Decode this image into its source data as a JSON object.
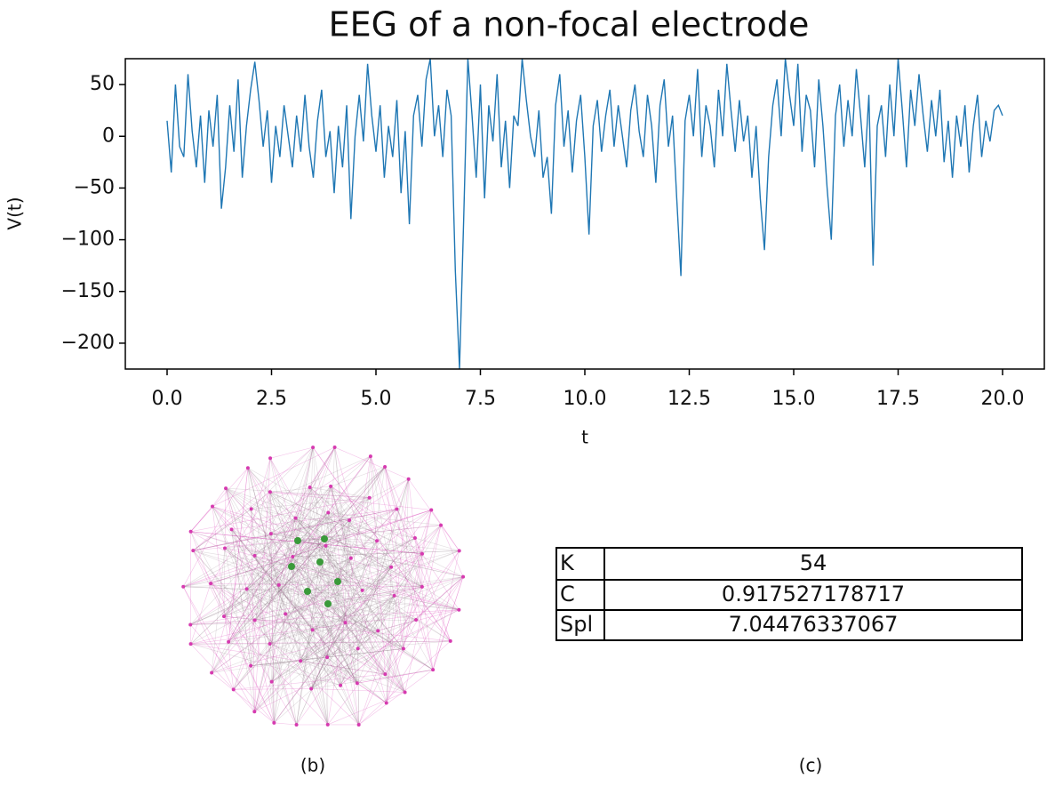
{
  "chart_data": {
    "type": "line",
    "title": "EEG of a non-focal electrode",
    "xlabel": "t",
    "ylabel": "V(t)",
    "color": "#1f77b4",
    "x": [
      0.0,
      0.1,
      0.2,
      0.3,
      0.4,
      0.5,
      0.6,
      0.7,
      0.8,
      0.9,
      1.0,
      1.1,
      1.2,
      1.3,
      1.4,
      1.5,
      1.6,
      1.7,
      1.8,
      1.9,
      2.0,
      2.1,
      2.2,
      2.3,
      2.4,
      2.5,
      2.6,
      2.7,
      2.8,
      2.9,
      3.0,
      3.1,
      3.2,
      3.3,
      3.4,
      3.5,
      3.6,
      3.7,
      3.8,
      3.9,
      4.0,
      4.1,
      4.2,
      4.3,
      4.4,
      4.5,
      4.6,
      4.7,
      4.8,
      4.9,
      5.0,
      5.1,
      5.2,
      5.3,
      5.4,
      5.5,
      5.6,
      5.7,
      5.8,
      5.9,
      6.0,
      6.1,
      6.2,
      6.3,
      6.4,
      6.5,
      6.6,
      6.7,
      6.8,
      6.9,
      7.0,
      7.1,
      7.2,
      7.3,
      7.4,
      7.5,
      7.6,
      7.7,
      7.8,
      7.9,
      8.0,
      8.1,
      8.2,
      8.3,
      8.4,
      8.5,
      8.6,
      8.7,
      8.8,
      8.9,
      9.0,
      9.1,
      9.2,
      9.3,
      9.4,
      9.5,
      9.6,
      9.7,
      9.8,
      9.9,
      10.0,
      10.1,
      10.2,
      10.3,
      10.4,
      10.5,
      10.6,
      10.7,
      10.8,
      10.9,
      11.0,
      11.1,
      11.2,
      11.3,
      11.4,
      11.5,
      11.6,
      11.7,
      11.8,
      11.9,
      12.0,
      12.1,
      12.2,
      12.3,
      12.4,
      12.5,
      12.6,
      12.7,
      12.8,
      12.9,
      13.0,
      13.1,
      13.2,
      13.3,
      13.4,
      13.5,
      13.6,
      13.7,
      13.8,
      13.9,
      14.0,
      14.1,
      14.2,
      14.3,
      14.4,
      14.5,
      14.6,
      14.7,
      14.8,
      14.9,
      15.0,
      15.1,
      15.2,
      15.3,
      15.4,
      15.5,
      15.6,
      15.7,
      15.8,
      15.9,
      16.0,
      16.1,
      16.2,
      16.3,
      16.4,
      16.5,
      16.6,
      16.7,
      16.8,
      16.9,
      17.0,
      17.1,
      17.2,
      17.3,
      17.4,
      17.5,
      17.6,
      17.7,
      17.8,
      17.9,
      18.0,
      18.1,
      18.2,
      18.3,
      18.4,
      18.5,
      18.6,
      18.7,
      18.8,
      18.9,
      19.0,
      19.1,
      19.2,
      19.3,
      19.4,
      19.5,
      19.6,
      19.7,
      19.8,
      19.9,
      20.0
    ],
    "values": [
      15,
      -35,
      50,
      -10,
      -20,
      60,
      5,
      -30,
      20,
      -45,
      25,
      -10,
      40,
      -70,
      -30,
      30,
      -15,
      55,
      -40,
      10,
      45,
      72,
      35,
      -10,
      25,
      -45,
      10,
      -20,
      30,
      0,
      -30,
      20,
      -15,
      40,
      -10,
      -40,
      15,
      45,
      -20,
      5,
      -55,
      10,
      -30,
      30,
      -80,
      0,
      40,
      -5,
      70,
      20,
      -15,
      30,
      -40,
      10,
      -20,
      35,
      -55,
      5,
      -85,
      20,
      40,
      -10,
      55,
      75,
      0,
      30,
      -20,
      45,
      20,
      -130,
      -225,
      -80,
      75,
      20,
      -40,
      50,
      -60,
      30,
      -5,
      60,
      -30,
      15,
      -50,
      20,
      10,
      75,
      35,
      0,
      -20,
      25,
      -40,
      -20,
      -75,
      30,
      60,
      -10,
      25,
      -35,
      15,
      40,
      -20,
      -95,
      10,
      35,
      -15,
      20,
      45,
      -10,
      30,
      0,
      -30,
      25,
      50,
      5,
      -20,
      40,
      10,
      -45,
      30,
      55,
      -10,
      20,
      -60,
      -135,
      15,
      40,
      0,
      65,
      -20,
      30,
      10,
      -30,
      45,
      0,
      70,
      25,
      -15,
      35,
      -5,
      20,
      -40,
      10,
      -60,
      -110,
      -20,
      30,
      55,
      0,
      75,
      40,
      10,
      70,
      -15,
      40,
      25,
      -30,
      55,
      10,
      -50,
      -100,
      20,
      50,
      -10,
      35,
      0,
      65,
      20,
      -30,
      40,
      -125,
      10,
      30,
      -20,
      50,
      0,
      75,
      25,
      -30,
      45,
      10,
      60,
      20,
      -15,
      35,
      0,
      45,
      -25,
      15,
      -40,
      20,
      -10,
      30,
      -35,
      10,
      40,
      -20,
      15,
      -5,
      25,
      30,
      20
    ],
    "xlim": [
      -1,
      21
    ],
    "ylim": [
      -225,
      75
    ],
    "xticks": [
      {
        "value": 0,
        "label": "0.0"
      },
      2.5,
      {
        "value": 5,
        "label": "5.0"
      },
      7.5,
      {
        "value": 10,
        "label": "10.0"
      },
      12.5,
      {
        "value": 15,
        "label": "15.0"
      },
      17.5,
      {
        "value": 20,
        "label": "20.0"
      }
    ],
    "yticks": [
      {
        "value": -200,
        "label": "−200"
      },
      {
        "value": -150,
        "label": "−150"
      },
      {
        "value": -100,
        "label": "−100"
      },
      {
        "value": -50,
        "label": "−50"
      },
      0,
      50
    ]
  },
  "table": {
    "rows": [
      [
        "K",
        "54"
      ],
      [
        "C",
        "0.917527178717"
      ],
      [
        "Spl",
        "7.04476337067"
      ]
    ]
  },
  "captions": [
    "(b)",
    "(c)"
  ]
}
